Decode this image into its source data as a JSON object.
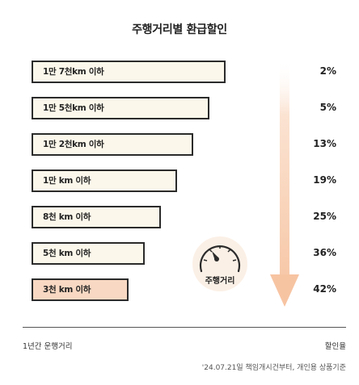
{
  "chart_data": {
    "type": "bar",
    "title": "주행거리별 환급할인",
    "categories": [
      "1만 7천km 이하",
      "1만 5천km 이하",
      "1만 2천km 이하",
      "1만 km 이하",
      "8천 km 이하",
      "5천 km 이하",
      "3천 km 이하"
    ],
    "values": [
      2,
      5,
      13,
      19,
      25,
      36,
      42
    ],
    "value_labels": [
      "2%",
      "5%",
      "13%",
      "19%",
      "25%",
      "36%",
      "42%"
    ],
    "xlabel": "1년간 운행거리",
    "ylabel": "할인율",
    "highlight_category": "3천 km 이하",
    "badge_label": "주행거리",
    "footnote": "'24.07.21일 책임개시건부터, 개인용 상품기준"
  },
  "colors": {
    "bar_fill": "#fbf7ea",
    "bar_highlight": "#f8d8c2",
    "bar_border": "#2b2b2b",
    "arrow": "#f8cdb0",
    "gauge_fill": "#fbf0e6"
  },
  "icons": {
    "gauge": "speedometer-icon",
    "arrow": "arrow-down-icon"
  }
}
